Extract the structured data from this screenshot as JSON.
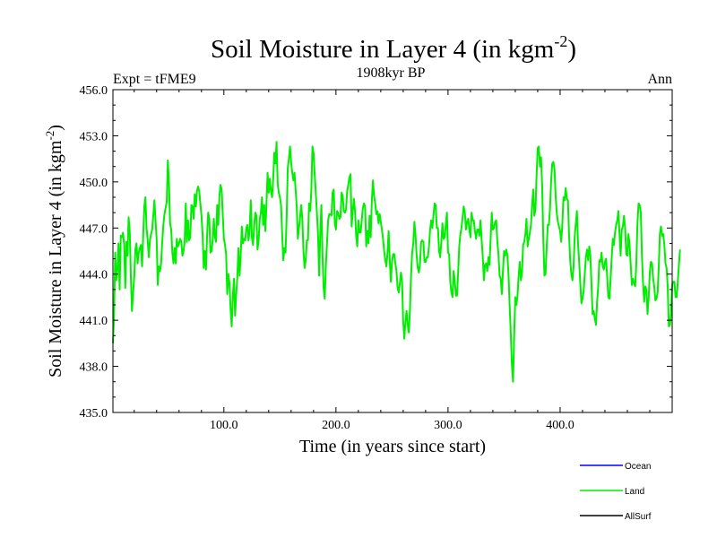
{
  "chart_data": {
    "type": "line",
    "title": "Soil Moisture in Layer 4 (in kgm",
    "title_exponent": "-2",
    "title_close": ")",
    "subtitle_left": "Expt = tFME9",
    "subtitle_center": "1908kyr BP",
    "subtitle_right": "Ann",
    "xlabel": "Time (in years since start)",
    "ylabel": "Soil Moisture in Layer 4 (in kgm",
    "ylabel_exponent": "-2",
    "ylabel_close": ")",
    "xlim": [
      1,
      500
    ],
    "ylim": [
      435.0,
      456.0
    ],
    "x_ticks": [
      100,
      200,
      300,
      400
    ],
    "x_tick_labels": [
      "100.0",
      "200.0",
      "300.0",
      "400.0"
    ],
    "y_ticks": [
      435,
      438,
      441,
      444,
      447,
      450,
      453,
      456
    ],
    "y_tick_labels": [
      "435.0",
      "438.0",
      "441.0",
      "444.0",
      "447.0",
      "450.0",
      "453.0",
      "456.0"
    ],
    "legend": [
      {
        "name": "Ocean",
        "color": "#0000ff"
      },
      {
        "name": "Land",
        "color": "#00ee00"
      },
      {
        "name": "AllSurf",
        "color": "#000000"
      }
    ],
    "legend_position": "bottom-right",
    "series": [
      {
        "name": "Land",
        "color": "#00ee00",
        "x_start": 1,
        "x_step": 1,
        "values": [
          439.5,
          441.2,
          445.4,
          443.6,
          444.3,
          446.0,
          443.0,
          446.5,
          446.4,
          446.7,
          445.9,
          443.1,
          446.1,
          445.2,
          447.7,
          446.8,
          443.8,
          441.6,
          442.8,
          443.8,
          445.6,
          446.0,
          444.7,
          445.4,
          445.7,
          445.9,
          444.5,
          446.5,
          448.4,
          449.0,
          447.0,
          446.2,
          445.1,
          446.2,
          446.6,
          446.9,
          447.8,
          448.8,
          447.5,
          446.3,
          443.3,
          444.5,
          444.2,
          444.7,
          446.1,
          447.2,
          447.9,
          448.3,
          448.7,
          451.4,
          449.9,
          447.3,
          446.9,
          445.4,
          444.7,
          445.7,
          444.7,
          446.3,
          445.8,
          446.0,
          446.3,
          446.1,
          445.2,
          445.5,
          446.1,
          448.6,
          446.1,
          447.5,
          446.2,
          446.4,
          448.5,
          448.4,
          447.6,
          449.2,
          448.4,
          449.4,
          449.7,
          449.4,
          448.6,
          447.8,
          446.6,
          444.4,
          445.5,
          444.3,
          446.5,
          448.0,
          447.6,
          445.4,
          445.5,
          446.2,
          447.6,
          446.4,
          446.1,
          448.5,
          447.2,
          449.1,
          449.8,
          449.5,
          447.9,
          446.3,
          445.9,
          445.3,
          442.7,
          444.0,
          443.4,
          441.7,
          440.6,
          442.6,
          443.7,
          441.3,
          442.7,
          443.8,
          445.7,
          443.9,
          445.2,
          447.1,
          446.0,
          446.3,
          446.2,
          447.0,
          447.2,
          446.2,
          446.9,
          448.8,
          446.4,
          445.9,
          447.1,
          448.0,
          447.8,
          445.6,
          446.2,
          447.6,
          448.0,
          449.0,
          447.2,
          448.5,
          446.8,
          448.6,
          450.6,
          449.3,
          450.2,
          449.4,
          449.0,
          450.2,
          451.9,
          451.2,
          452.6,
          449.9,
          449.3,
          449.0,
          448.5,
          446.6,
          444.9,
          445.7,
          445.4,
          447.7,
          450.9,
          451.5,
          452.3,
          451.3,
          450.6,
          450.1,
          450.6,
          449.5,
          448.4,
          446.3,
          447.0,
          447.7,
          448.5,
          447.6,
          445.5,
          444.4,
          444.9,
          446.2,
          446.2,
          448.6,
          448.1,
          449.4,
          452.3,
          451.9,
          450.5,
          449.3,
          448.0,
          446.6,
          443.9,
          446.7,
          448.5,
          445.2,
          443.1,
          442.4,
          444.6,
          446.0,
          447.5,
          447.9,
          447.9,
          447.8,
          449.3,
          449.5,
          447.3,
          446.9,
          448.1,
          448.0,
          447.6,
          447.7,
          449.3,
          449.1,
          448.1,
          448.0,
          448.2,
          449.4,
          449.8,
          450.3,
          450.5,
          447.1,
          448.1,
          448.9,
          448.1,
          446.5,
          445.8,
          447.5,
          446.7,
          446.7,
          447.5,
          448.3,
          448.6,
          448.4,
          445.8,
          446.8,
          446.0,
          447.8,
          446.4,
          448.8,
          450.1,
          449.1,
          448.6,
          447.9,
          448.1,
          447.3,
          447.9,
          447.4,
          446.9,
          446.3,
          445.5,
          444.9,
          444.5,
          445.4,
          446.8,
          444.9,
          443.5,
          444.8,
          445.3,
          445.3,
          444.7,
          444.2,
          443.1,
          442.8,
          443.4,
          444.1,
          443.5,
          440.9,
          439.8,
          440.9,
          441.6,
          440.7,
          440.2,
          441.6,
          443.9,
          445.4,
          446.0,
          447.4,
          446.5,
          445.2,
          444.4,
          444.1,
          444.7,
          446.1,
          446.2,
          446.1,
          444.8,
          444.8,
          445.1,
          445.1,
          445.8,
          446.9,
          447.5,
          447.0,
          447.8,
          448.6,
          448.5,
          447.0,
          447.0,
          445.5,
          445.1,
          446.1,
          447.3,
          446.3,
          446.4,
          447.2,
          448.0,
          445.4,
          445.3,
          443.5,
          442.8,
          442.5,
          444.2,
          443.6,
          442.6,
          442.6,
          444.1,
          445.8,
          446.6,
          447.0,
          447.7,
          448.4,
          448.0,
          446.9,
          447.4,
          447.6,
          446.9,
          446.4,
          448.0,
          447.5,
          447.5,
          446.8,
          446.3,
          446.9,
          446.9,
          446.5,
          447.5,
          446.2,
          445.1,
          443.6,
          444.6,
          444.7,
          444.2,
          445.1,
          444.6,
          446.3,
          448.0,
          446.9,
          447.0,
          447.4,
          447.5,
          446.1,
          445.3,
          443.9,
          443.7,
          442.7,
          444.2,
          445.5,
          445.2,
          445.6,
          445.2,
          443.9,
          441.9,
          440.1,
          438.1,
          437.0,
          440.0,
          442.5,
          442.0,
          442.6,
          443.9,
          444.8,
          443.6,
          444.1,
          445.9,
          446.1,
          446.6,
          447.6,
          445.8,
          446.3,
          446.7,
          447.2,
          448.5,
          449.5,
          447.8,
          448.2,
          450.4,
          452.2,
          452.3,
          451.0,
          451.6,
          449.7,
          446.3,
          443.9,
          444.0,
          445.7,
          447.2,
          447.2,
          448.3,
          450.1,
          451.2,
          451.3,
          450.8,
          449.1,
          448.0,
          447.4,
          447.1,
          446.8,
          446.1,
          447.3,
          449.0,
          448.8,
          449.6,
          448.9,
          448.8,
          446.5,
          444.9,
          444.0,
          443.6,
          444.5,
          446.4,
          447.3,
          448.1,
          446.0,
          444.8,
          443.4,
          442.1,
          442.4,
          442.9,
          444.0,
          445.1,
          445.6,
          444.9,
          445.8,
          445.2,
          443.3,
          441.4,
          441.6,
          441.1,
          440.7,
          442.2,
          443.2,
          444.9,
          444.8,
          445.4,
          444.5,
          444.3,
          444.8,
          445.0,
          443.8,
          442.5,
          442.4,
          443.6,
          445.0,
          446.3,
          445.9,
          446.7,
          447.2,
          447.5,
          448.1,
          446.6,
          445.2,
          446.9,
          447.1,
          447.8,
          447.0,
          445.3,
          445.2,
          446.6,
          445.9,
          444.6,
          443.3,
          443.7,
          443.4,
          443.2,
          444.7,
          447.3,
          448.6,
          448.5,
          448.0,
          445.2,
          443.4,
          442.2,
          443.2,
          443.0,
          441.4,
          442.4,
          444.1,
          444.8,
          444.7,
          443.7,
          443.2,
          442.3,
          442.4,
          442.8,
          444.4,
          446.6,
          447.1,
          446.5,
          446.6,
          445.9,
          444.7,
          444.4,
          443.2,
          440.6,
          440.7,
          441.5,
          443.3,
          443.5,
          443.5,
          442.5,
          442.5,
          443.5,
          444.6,
          445.6
        ]
      }
    ]
  }
}
